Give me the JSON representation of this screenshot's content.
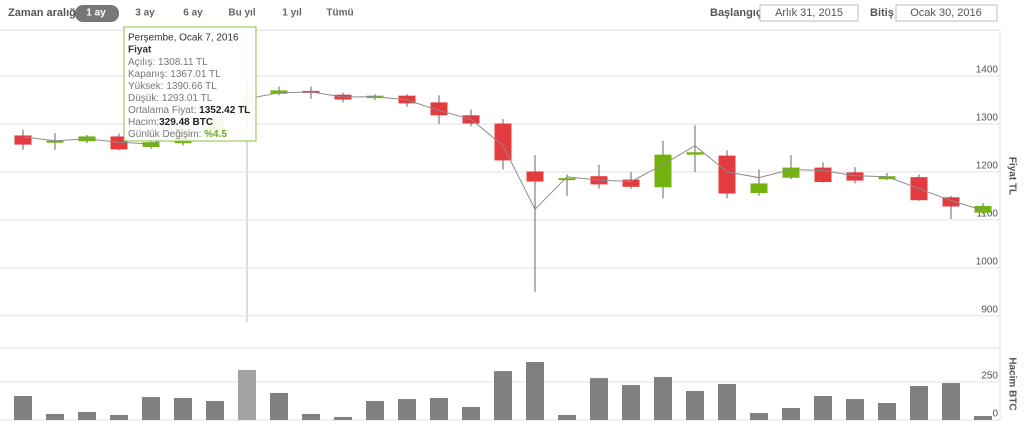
{
  "toolbar": {
    "range_label": "Zaman aralığı",
    "buttons": [
      "1 ay",
      "3 ay",
      "6 ay",
      "Bu yıl",
      "1 yıl",
      "Tümü"
    ],
    "start_label": "Başlangıç",
    "start_value": "Arlık 31, 2015",
    "end_label": "Bitiş",
    "end_value": "Ocak 30, 2016"
  },
  "tooltip": {
    "index": 7,
    "date": "Perşembe, Ocak 7, 2016",
    "heading": "Fiyat",
    "rows": [
      {
        "label": "Açılış:",
        "value": "1308.11 TL"
      },
      {
        "label": "Kapanış:",
        "value": "1367.01 TL"
      },
      {
        "label": "Yüksek:",
        "value": "1390.66 TL"
      },
      {
        "label": "Düşük:",
        "value": "1293.01 TL"
      },
      {
        "label": "Ortalama Fiyat:",
        "value": "1352.42 TL"
      },
      {
        "label": "Hacim:",
        "value": "329.48 BTC"
      },
      {
        "label": "Günlük Değişim:",
        "value": "%4.5"
      }
    ]
  },
  "chart_data": [
    {
      "type": "candlestick",
      "y_label": "Fiyat TL",
      "categories": [
        null,
        null,
        null,
        null,
        null,
        null,
        null,
        null,
        null,
        null,
        null,
        null,
        null,
        null,
        null,
        null,
        null,
        null,
        null,
        null,
        null,
        null,
        null,
        null,
        null,
        null,
        null,
        null,
        null,
        null,
        null
      ],
      "open": [
        1275,
        1262,
        1265,
        1273,
        1253,
        1261,
        1290,
        1308.11,
        1364,
        1368,
        1360,
        1355,
        1358,
        1344,
        1317,
        1300,
        1200,
        1185,
        1190,
        1183,
        1169,
        1237,
        1233,
        1157,
        1189,
        1208,
        1198,
        1186,
        1188,
        1146,
        1116
      ],
      "high": [
        1288,
        1281,
        1277,
        1280,
        1285,
        1300,
        1320,
        1390.66,
        1378,
        1378,
        1365,
        1362,
        1362,
        1360,
        1330,
        1310,
        1235,
        1195,
        1215,
        1200,
        1265,
        1297,
        1245,
        1205,
        1235,
        1220,
        1210,
        1198,
        1195,
        1150,
        1135
      ],
      "low": [
        1246,
        1246,
        1260,
        1245,
        1248,
        1255,
        1285,
        1293.01,
        1360,
        1352,
        1345,
        1350,
        1336,
        1300,
        1295,
        1205,
        950,
        1150,
        1165,
        1165,
        1145,
        1200,
        1145,
        1150,
        1185,
        1178,
        1176,
        1183,
        1140,
        1102,
        1112
      ],
      "close": [
        1258,
        1264,
        1273,
        1248,
        1261,
        1290,
        1308,
        1367.01,
        1369,
        1367,
        1352,
        1358,
        1344,
        1319,
        1302,
        1225,
        1181,
        1186,
        1175,
        1170,
        1235,
        1240,
        1156,
        1175,
        1208,
        1180,
        1183,
        1190,
        1142,
        1129,
        1128
      ],
      "average": [
        1273,
        1265,
        1269,
        1262,
        1258,
        1282,
        1300,
        1352.42,
        1365,
        1367,
        1356,
        1357,
        1350,
        1328,
        1310,
        1255,
        1122,
        1190,
        1183,
        1180,
        1215,
        1255,
        1200,
        1188,
        1205,
        1203,
        1192,
        1190,
        1165,
        1140,
        1120
      ],
      "up_color": "#73b30f",
      "down_color": "#e33b3f",
      "line_color": "#8c8c8c",
      "ylim": [
        887,
        1496
      ],
      "yticks": [
        900,
        1000,
        1100,
        1200,
        1300,
        1400
      ],
      "grid": true
    },
    {
      "type": "bar",
      "y_label": "Hacim BTC",
      "values": [
        158,
        40,
        53,
        33,
        151,
        145,
        125,
        329.48,
        178,
        40,
        20,
        125,
        138,
        145,
        86,
        322,
        382,
        33,
        276,
        230,
        283,
        191,
        237,
        46,
        79,
        158,
        138,
        112,
        224,
        243,
        26
      ],
      "color": "#808080",
      "ylim": [
        0,
        474
      ],
      "yticks": [
        0,
        250
      ],
      "grid": true
    }
  ]
}
